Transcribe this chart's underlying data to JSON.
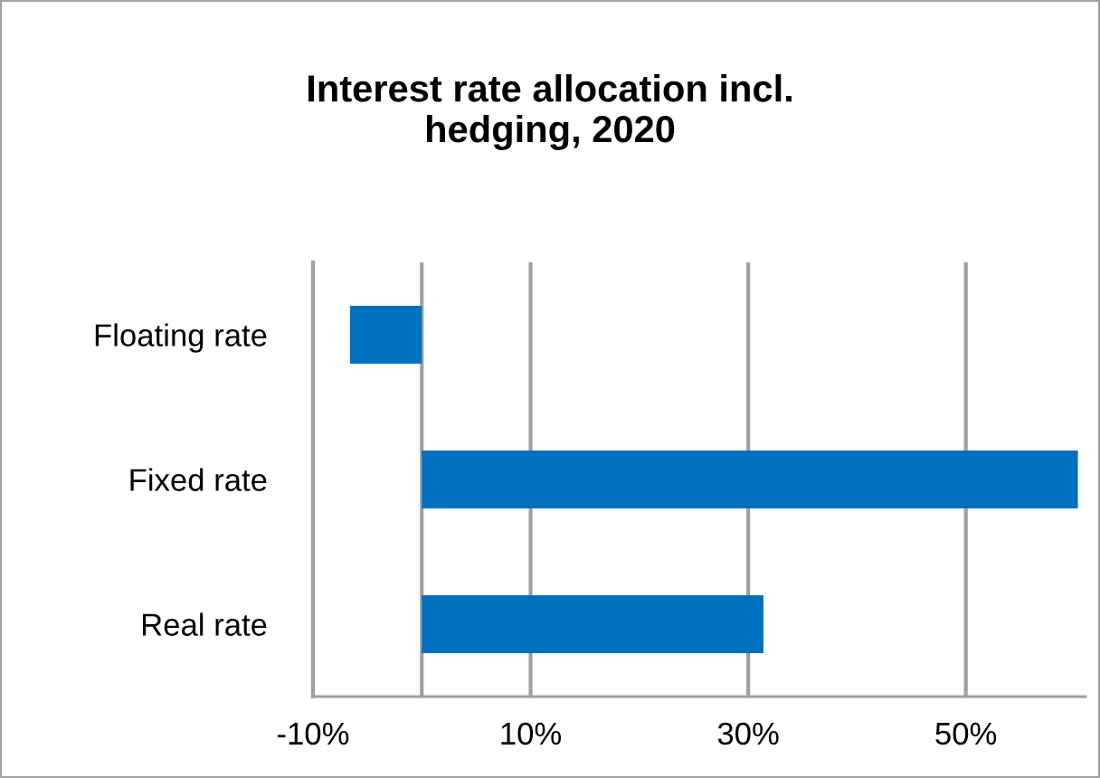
{
  "chart_data": {
    "type": "bar",
    "orientation": "horizontal",
    "title": "Interest rate allocation incl.\nhedging, 2020",
    "categories": [
      "Floating rate",
      "Fixed rate",
      "Real rate"
    ],
    "values": [
      -6.6,
      60.3,
      31.4
    ],
    "color": "#0070c0",
    "xlim": [
      -10,
      61
    ],
    "xticks": [
      {
        "value": -10,
        "label": "-10%"
      },
      {
        "value": 0,
        "label": null
      },
      {
        "value": 10,
        "label": "10%"
      },
      {
        "value": 30,
        "label": "30%"
      },
      {
        "value": 50,
        "label": "50%"
      }
    ],
    "grid": "x",
    "legend": false
  }
}
